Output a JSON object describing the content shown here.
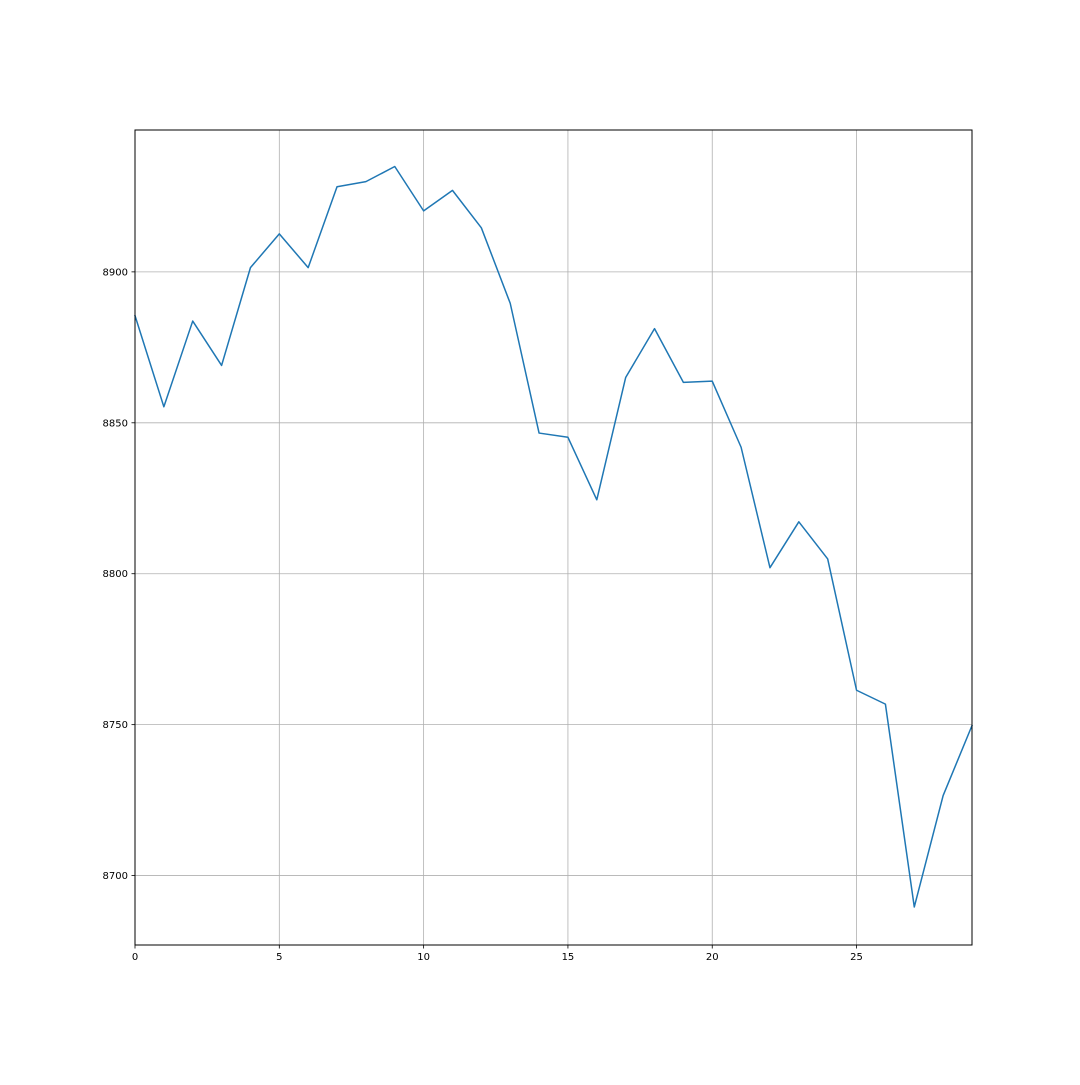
{
  "chart_data": {
    "type": "line",
    "title": "",
    "xlabel": "",
    "ylabel": "",
    "xlim": [
      0,
      29
    ],
    "ylim": [
      8677,
      8947
    ],
    "xticks": [
      0,
      5,
      10,
      15,
      20,
      25
    ],
    "yticks": [
      8700,
      8750,
      8800,
      8850,
      8900
    ],
    "grid": true,
    "legend": "none",
    "series": [
      {
        "color": "#1f77b4",
        "x": [
          0,
          1,
          2,
          3,
          4,
          5,
          6,
          7,
          8,
          9,
          10,
          11,
          12,
          13,
          14,
          15,
          16,
          17,
          18,
          19,
          20,
          21,
          22,
          23,
          24,
          25,
          26,
          27,
          28,
          29
        ],
        "y": [
          8885.5,
          8855.3,
          8883.7,
          8869,
          8901.4,
          8912.6,
          8901.4,
          8928.2,
          8929.9,
          8934.9,
          8920.2,
          8927,
          8914.6,
          8889.6,
          8846.6,
          8845.2,
          8824.5,
          8865,
          8881.2,
          8863.4,
          8863.8,
          8841.9,
          8802,
          8817.2,
          8804.9,
          8761.4,
          8756.8,
          8689.6,
          8726.5,
          8749.7
        ]
      }
    ]
  }
}
